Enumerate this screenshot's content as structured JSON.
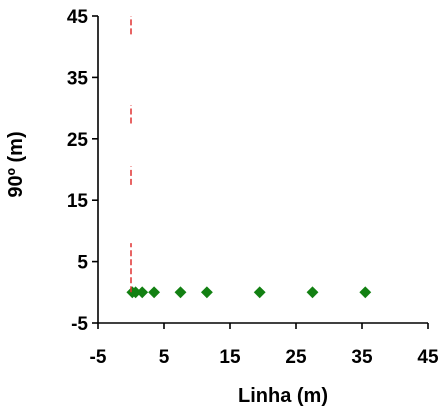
{
  "chart_data": {
    "type": "scatter",
    "title": "",
    "xlabel": "Linha (m)",
    "ylabel": "90º (m)",
    "xlim": [
      -5,
      45
    ],
    "ylim": [
      -5,
      45
    ],
    "xticks": [
      "-5",
      "5",
      "15",
      "25",
      "35",
      "45"
    ],
    "yticks": [
      "-5",
      "5",
      "15",
      "25",
      "35",
      "45"
    ],
    "grid": false,
    "legend": "none",
    "series": [
      {
        "marker": "diamond",
        "color": "#128012",
        "points": [
          [
            0.2,
            0
          ],
          [
            0.7,
            0
          ],
          [
            1.7,
            0
          ],
          [
            3.5,
            0
          ],
          [
            7.5,
            0
          ],
          [
            11.5,
            0
          ],
          [
            19.5,
            0
          ],
          [
            27.5,
            0
          ],
          [
            35.5,
            0
          ]
        ]
      },
      {
        "line": "dashed",
        "color": "#e03030",
        "segments": [
          [
            [
              0,
              0
            ],
            [
              0,
              8
            ]
          ],
          [
            [
              0,
              17.5
            ],
            [
              0,
              20.5
            ]
          ],
          [
            [
              0,
              27.5
            ],
            [
              0,
              30.5
            ]
          ],
          [
            [
              0,
              42
            ],
            [
              0,
              45
            ]
          ]
        ]
      }
    ]
  }
}
